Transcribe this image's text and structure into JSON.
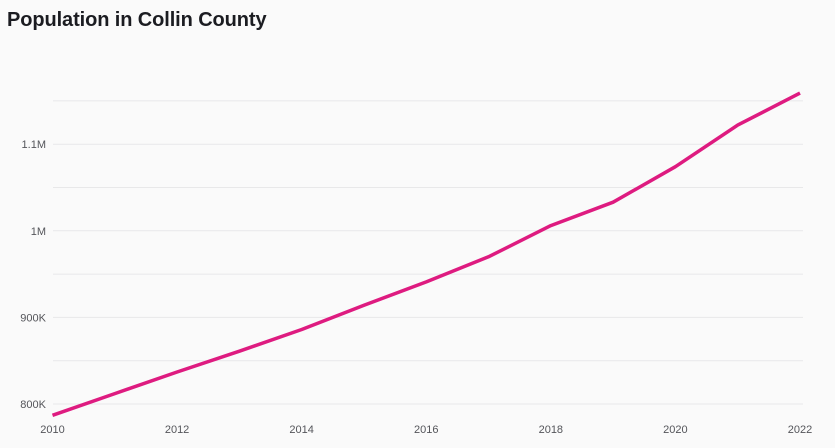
{
  "title": "Population in Collin County",
  "colors": {
    "background": "#fafafa",
    "line": "#de1b80",
    "grid": "#e8e8e9",
    "title_text": "#1b1c21",
    "axis_text": "#54555a"
  },
  "chart_data": {
    "type": "line",
    "title": "Population in Collin County",
    "xlabel": "",
    "ylabel": "",
    "legend": "none",
    "grid": "horizontal-only",
    "x": [
      2010,
      2011,
      2012,
      2013,
      2014,
      2015,
      2016,
      2017,
      2018,
      2019,
      2020,
      2021,
      2022
    ],
    "series": [
      {
        "name": "Population",
        "values": [
          787000,
          812000,
          837000,
          861000,
          886000,
          914000,
          941000,
          970000,
          1006000,
          1033000,
          1074000,
          1122000,
          1159000
        ]
      }
    ],
    "xlim": [
      2010,
      2022
    ],
    "ylim": [
      775000,
      1165000
    ],
    "x_ticks": [
      {
        "value": 2010,
        "label": "2010"
      },
      {
        "value": 2012,
        "label": "2012"
      },
      {
        "value": 2014,
        "label": "2014"
      },
      {
        "value": 2016,
        "label": "2016"
      },
      {
        "value": 2018,
        "label": "2018"
      },
      {
        "value": 2020,
        "label": "2020"
      },
      {
        "value": 2022,
        "label": "2022"
      }
    ],
    "y_gridlines": [
      {
        "value": 800000,
        "label": "800K"
      },
      {
        "value": 850000,
        "label": ""
      },
      {
        "value": 900000,
        "label": "900K"
      },
      {
        "value": 950000,
        "label": ""
      },
      {
        "value": 1000000,
        "label": "1M"
      },
      {
        "value": 1050000,
        "label": ""
      },
      {
        "value": 1100000,
        "label": "1.1M"
      },
      {
        "value": 1150000,
        "label": ""
      }
    ]
  }
}
